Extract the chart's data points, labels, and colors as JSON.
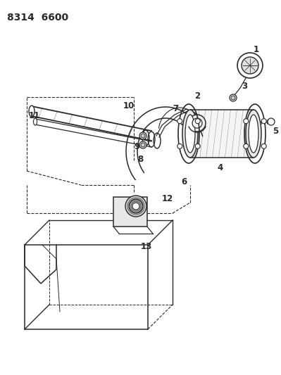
{
  "title": "8314  6600",
  "bg_color": "#ffffff",
  "line_color": "#2a2a2a",
  "title_fontsize": 10,
  "label_fontsize": 8.5,
  "figsize": [
    3.99,
    5.33
  ],
  "dpi": 100
}
